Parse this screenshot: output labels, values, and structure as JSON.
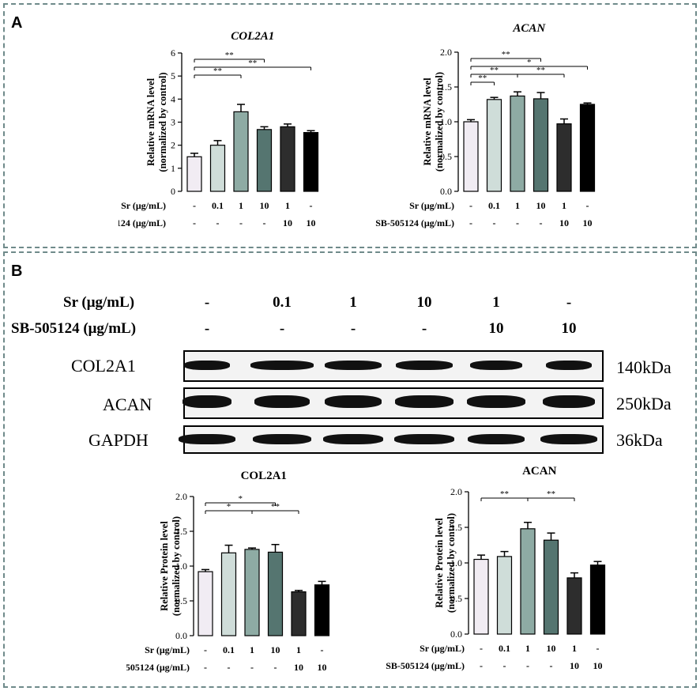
{
  "panels": {
    "a": "A",
    "b": "B"
  },
  "colors": [
    "#f1ecf3",
    "#cfddd9",
    "#8eaba4",
    "#557570",
    "#2d2d2d",
    "#000000"
  ],
  "row_labels": {
    "sr": "Sr (μg/mL)",
    "sb": "SB-505124 (μg/mL)"
  },
  "conditions": {
    "sr": [
      "-",
      "0.1",
      "1",
      "10",
      "1",
      "-"
    ],
    "sb": [
      "-",
      "-",
      "-",
      "-",
      "10",
      "10"
    ]
  },
  "western_blot": {
    "header_sr_label": "Sr (μg/mL)",
    "header_sb_label": "SB-505124 (μg/mL)",
    "rows": [
      {
        "name": "COL2A1",
        "kda": "140kDa"
      },
      {
        "name": "ACAN",
        "kda": "250kDa"
      },
      {
        "name": "GAPDH",
        "kda": "36kDa"
      }
    ]
  },
  "chart_data": [
    {
      "id": "a1",
      "type": "bar",
      "title": "COL2A1",
      "title_italic": true,
      "ylabel": [
        "Relative mRNA level",
        "(normalized by control)"
      ],
      "ylim": [
        0,
        6
      ],
      "yticks": [
        "0",
        "1",
        "2",
        "3",
        "4",
        "5",
        "6"
      ],
      "values": [
        1.5,
        2.0,
        3.45,
        2.68,
        2.8,
        2.55
      ],
      "errors": [
        0.15,
        0.2,
        0.32,
        0.12,
        0.12,
        0.08
      ],
      "significance": [
        {
          "from": 0,
          "to": 3,
          "label": "**"
        },
        {
          "from": 0,
          "to": 5,
          "label": "**"
        },
        {
          "from": 0,
          "to": 2,
          "label": "**"
        }
      ]
    },
    {
      "id": "a2",
      "type": "bar",
      "title": "ACAN",
      "title_italic": true,
      "ylabel": [
        "Relative mRNA level",
        "(normalized by control)"
      ],
      "ylim": [
        0,
        2.0
      ],
      "yticks": [
        "0.0",
        "0.5",
        "1.0",
        "1.5",
        "2.0"
      ],
      "values": [
        1.0,
        1.32,
        1.37,
        1.33,
        0.97,
        1.25
      ],
      "errors": [
        0.03,
        0.03,
        0.06,
        0.09,
        0.07,
        0.02
      ],
      "significance": [
        {
          "from": 0,
          "to": 3,
          "label": "**"
        },
        {
          "from": 0,
          "to": 5,
          "label": "*"
        },
        {
          "from": 0,
          "to": 2,
          "label": "**",
          "pair_with": {
            "from": 2,
            "to": 4,
            "label": "**"
          }
        },
        {
          "from": 0,
          "to": 1,
          "label": "**"
        }
      ]
    },
    {
      "id": "b1",
      "type": "bar",
      "title": "COL2A1",
      "title_italic": false,
      "ylabel": [
        "Relative Protein level",
        "(normalized by control)"
      ],
      "ylim": [
        0,
        2.0
      ],
      "yticks": [
        "0.0",
        "0.5",
        "1.0",
        "1.5",
        "2.0"
      ],
      "values": [
        0.92,
        1.19,
        1.24,
        1.2,
        0.63,
        0.73
      ],
      "errors": [
        0.03,
        0.11,
        0.02,
        0.11,
        0.02,
        0.05
      ],
      "significance": [
        {
          "from": 0,
          "to": 3,
          "label": "*"
        },
        {
          "from": 0,
          "to": 2,
          "label": "*",
          "pair_with": {
            "from": 2,
            "to": 4,
            "label": "**"
          }
        }
      ]
    },
    {
      "id": "b2",
      "type": "bar",
      "title": "ACAN",
      "title_italic": false,
      "ylabel": [
        "Relative Protein level",
        "(normalized by control)"
      ],
      "ylim": [
        0,
        2.0
      ],
      "yticks": [
        "0.0",
        "0.5",
        "1.0",
        "1.5",
        "2.0"
      ],
      "values": [
        1.05,
        1.09,
        1.48,
        1.32,
        0.79,
        0.97
      ],
      "errors": [
        0.06,
        0.07,
        0.09,
        0.1,
        0.07,
        0.05
      ],
      "significance": [
        {
          "from": 0,
          "to": 2,
          "label": "**",
          "pair_with": {
            "from": 2,
            "to": 4,
            "label": "**"
          }
        }
      ]
    }
  ]
}
